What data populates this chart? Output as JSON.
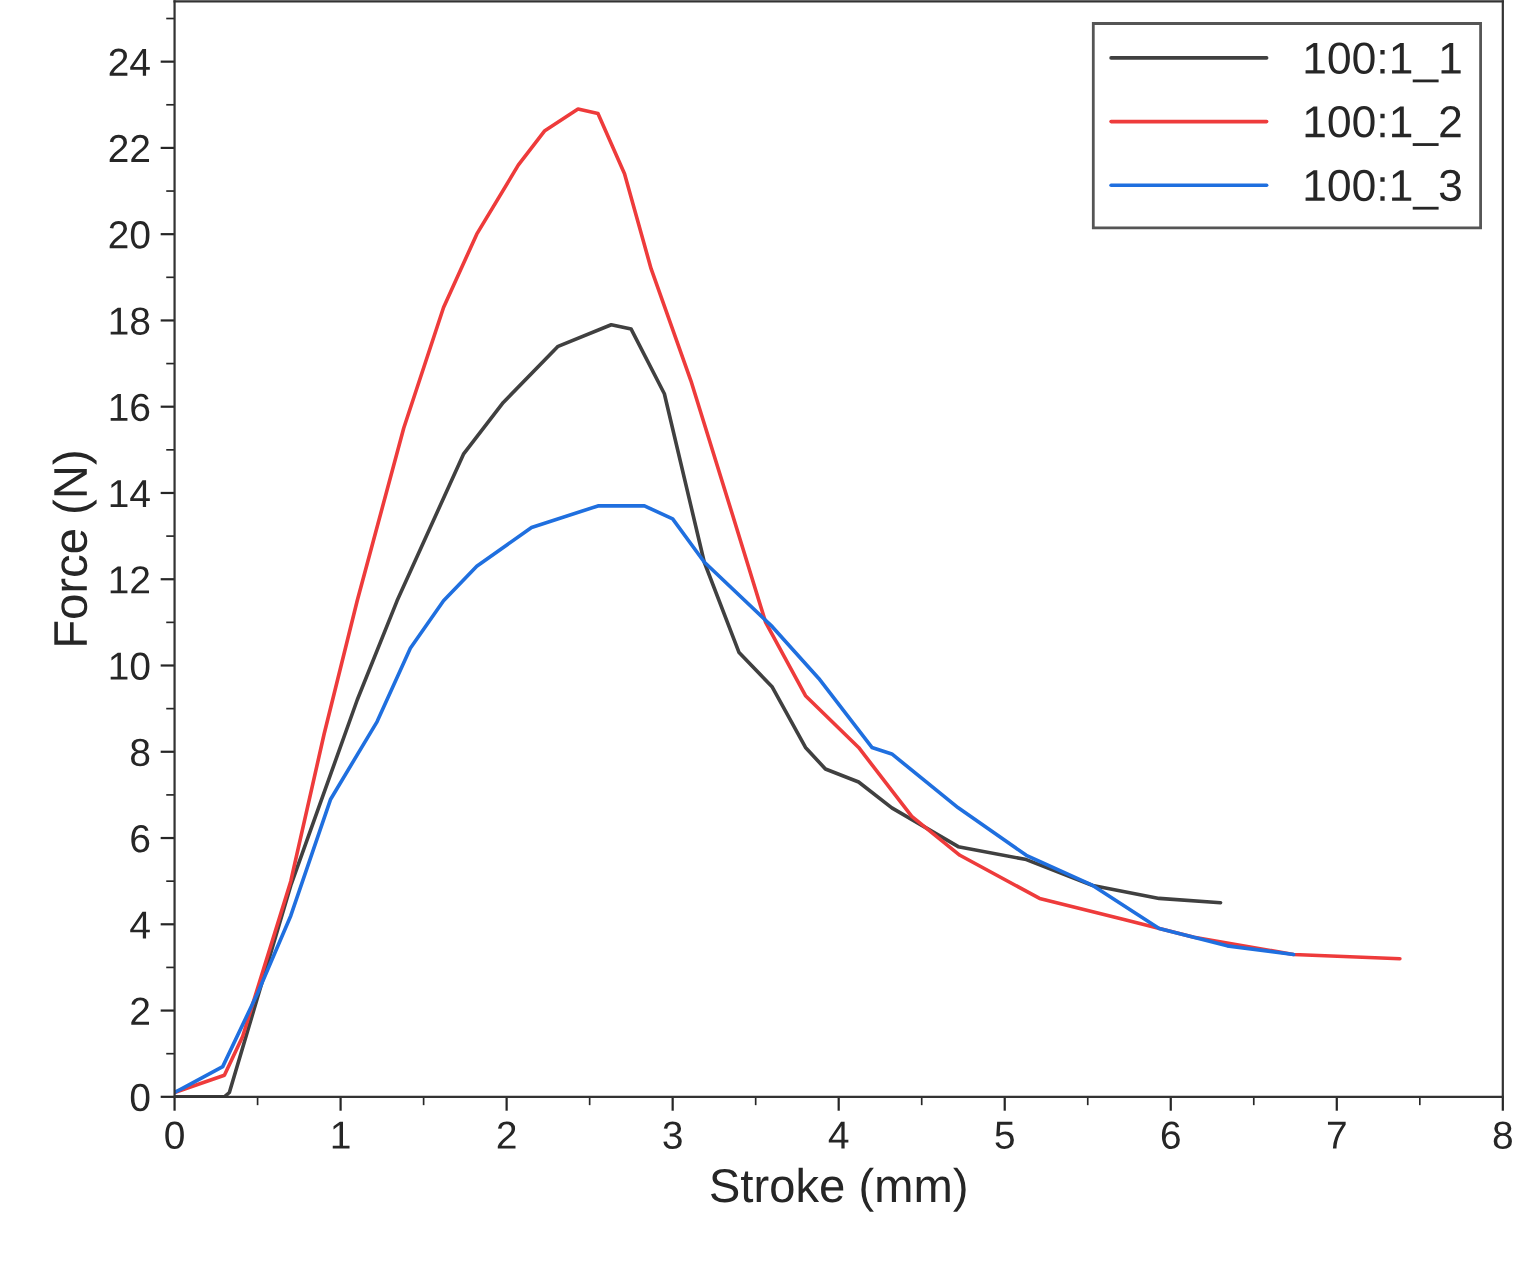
{
  "chart_data": {
    "type": "line",
    "xlabel": "Stroke (mm)",
    "ylabel": "Force (N)",
    "xlim": [
      0,
      8
    ],
    "xticks": [
      0,
      1,
      2,
      3,
      4,
      5,
      6,
      7,
      8
    ],
    "ylim": [
      0,
      25.4
    ],
    "yticks": [
      0,
      2,
      4,
      6,
      8,
      10,
      12,
      14,
      16,
      18,
      20,
      22,
      24
    ],
    "grid": false,
    "legend": "top right",
    "marker": "none",
    "line_style": "solid",
    "series": [
      {
        "name": "100:1_1",
        "color": "#404040",
        "x": [
          0,
          0.3,
          0.33,
          0.7,
          1.1,
          1.34,
          1.74,
          1.98,
          2.31,
          2.63,
          2.75,
          2.95,
          3.19,
          3.4,
          3.6,
          3.8,
          3.92,
          4.12,
          4.32,
          4.72,
          5.13,
          5.53,
          5.93,
          6.3
        ],
        "values": [
          0,
          0,
          0.1,
          4.9,
          9.2,
          11.5,
          14.9,
          16.1,
          17.4,
          17.9,
          17.8,
          16.3,
          12.4,
          10.3,
          9.5,
          8.1,
          7.6,
          7.3,
          6.7,
          5.8,
          5.5,
          4.9,
          4.6,
          4.5
        ]
      },
      {
        "name": "100:1_2",
        "color": "#ee3b3b",
        "x": [
          0,
          0.3,
          0.41,
          0.7,
          0.9,
          1.1,
          1.38,
          1.62,
          1.82,
          2.07,
          2.23,
          2.43,
          2.55,
          2.71,
          2.87,
          3.11,
          3.36,
          3.56,
          3.8,
          4.12,
          4.44,
          4.73,
          5.21,
          5.73,
          6.14,
          6.74,
          7.38
        ],
        "values": [
          0.1,
          0.5,
          1.4,
          5.0,
          8.4,
          11.5,
          15.5,
          18.3,
          20.0,
          21.6,
          22.4,
          22.9,
          22.8,
          21.4,
          19.2,
          16.6,
          13.5,
          11.0,
          9.3,
          8.1,
          6.5,
          5.6,
          4.6,
          4.1,
          3.7,
          3.3,
          3.2
        ]
      },
      {
        "name": "100:1_3",
        "color": "#1f6fdf",
        "x": [
          0,
          0.05,
          0.29,
          0.5,
          0.7,
          0.94,
          1.22,
          1.42,
          1.62,
          1.82,
          2.15,
          2.55,
          2.83,
          3.0,
          3.19,
          3.6,
          3.88,
          4.2,
          4.32,
          4.72,
          5.13,
          5.53,
          5.93,
          6.34,
          6.74
        ],
        "values": [
          0.1,
          0.2,
          0.7,
          2.4,
          4.2,
          6.9,
          8.7,
          10.4,
          11.5,
          12.3,
          13.2,
          13.7,
          13.7,
          13.4,
          12.4,
          10.9,
          9.7,
          8.1,
          7.95,
          6.7,
          5.6,
          4.9,
          3.9,
          3.5,
          3.3
        ]
      }
    ]
  }
}
